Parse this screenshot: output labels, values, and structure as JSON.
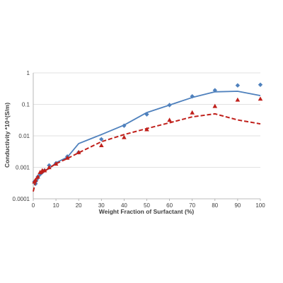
{
  "chart_data": {
    "type": "line",
    "xlabel": "Weight Fraction of Surfactant (%)",
    "ylabel": "Conductivity *10⁴(S/m)",
    "xlim": [
      0,
      100
    ],
    "ylim": [
      0.0001,
      1
    ],
    "yscale": "log",
    "grid": "horizontal",
    "legend": "none",
    "x_ticks": [
      "0",
      "10",
      "20",
      "30",
      "40",
      "50",
      "60",
      "70",
      "80",
      "90",
      "100"
    ],
    "x_tick_values": [
      0,
      10,
      20,
      30,
      40,
      50,
      60,
      70,
      80,
      90,
      100
    ],
    "y_ticks": [
      "0.0001",
      "0.001",
      "0.01",
      "0.1",
      "1"
    ],
    "y_tick_values": [
      0.0001,
      0.001,
      0.01,
      0.1,
      1
    ],
    "series": [
      {
        "style": "solid-line",
        "color": "#4f81bd",
        "x": [
          0,
          1,
          2,
          3,
          5,
          7,
          10,
          15,
          20,
          30,
          40,
          50,
          60,
          70,
          80,
          90,
          100
        ],
        "y": [
          0.00035,
          0.0003,
          0.0004,
          0.0006,
          0.0008,
          0.0009,
          0.0014,
          0.0021,
          0.0057,
          0.011,
          0.022,
          0.055,
          0.095,
          0.165,
          0.25,
          0.26,
          0.19
        ]
      },
      {
        "style": "markers",
        "marker": "diamond",
        "color": "#4f81bd",
        "x": [
          0.5,
          1,
          2,
          3,
          4,
          5,
          7,
          10,
          15,
          20,
          30,
          40,
          50,
          60,
          70,
          80,
          90,
          100
        ],
        "y": [
          0.00035,
          0.0003,
          0.0005,
          0.0006,
          0.0007,
          0.0008,
          0.00115,
          0.00135,
          0.0022,
          0.003,
          0.0078,
          0.021,
          0.048,
          0.095,
          0.18,
          0.28,
          0.4,
          0.42
        ]
      },
      {
        "style": "dashed-line",
        "color": "#c0201b",
        "x": [
          0,
          1,
          2,
          3,
          5,
          7,
          10,
          15,
          20,
          30,
          40,
          50,
          60,
          70,
          80,
          90,
          100
        ],
        "y": [
          0.00017,
          0.00035,
          0.00048,
          0.0006,
          0.00075,
          0.00095,
          0.0013,
          0.0019,
          0.0029,
          0.0065,
          0.011,
          0.017,
          0.026,
          0.04,
          0.05,
          0.032,
          0.024
        ]
      },
      {
        "style": "markers",
        "marker": "triangle",
        "color": "#c0201b",
        "x": [
          0.5,
          1,
          2,
          3,
          4,
          5,
          7,
          10,
          15,
          20,
          30,
          40,
          50,
          60,
          70,
          80,
          90,
          100
        ],
        "y": [
          0.00035,
          0.0004,
          0.0005,
          0.0007,
          0.0008,
          0.0008,
          0.001,
          0.0013,
          0.002,
          0.003,
          0.005,
          0.009,
          0.016,
          0.032,
          0.055,
          0.088,
          0.14,
          0.15
        ]
      }
    ]
  }
}
